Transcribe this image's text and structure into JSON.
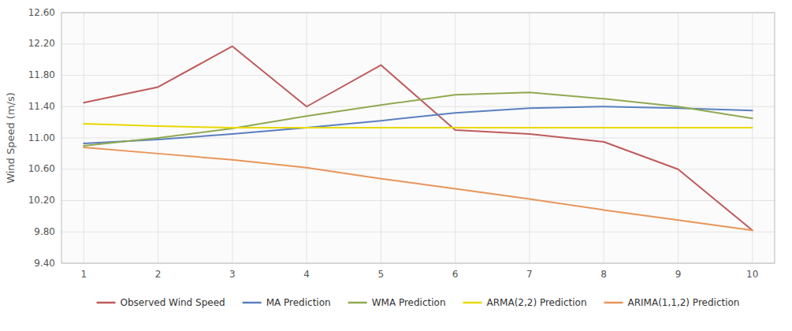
{
  "chart_data": {
    "type": "line",
    "ylabel": "Wind Speed (m/s)",
    "x": [
      1,
      2,
      3,
      4,
      5,
      6,
      7,
      8,
      9,
      10
    ],
    "series": [
      {
        "name": "Observed Wind Speed",
        "color": "#be5b5b",
        "values": [
          11.45,
          11.65,
          12.17,
          11.4,
          11.93,
          11.1,
          11.05,
          10.95,
          10.6,
          9.82
        ]
      },
      {
        "name": "MA Prediction",
        "color": "#5b7fbf",
        "values": [
          10.93,
          10.98,
          11.05,
          11.13,
          11.22,
          11.32,
          11.38,
          11.4,
          11.38,
          11.35
        ]
      },
      {
        "name": "WMA Prediction",
        "color": "#8faa50",
        "values": [
          10.9,
          11.0,
          11.12,
          11.28,
          11.42,
          11.55,
          11.58,
          11.5,
          11.4,
          11.25
        ]
      },
      {
        "name": "ARMA(2,2) Prediction",
        "color": "#e8d800",
        "values": [
          11.18,
          11.15,
          11.13,
          11.13,
          11.13,
          11.13,
          11.13,
          11.13,
          11.13,
          11.13
        ]
      },
      {
        "name": "ARIMA(1,1,2) Prediction",
        "color": "#e8955a",
        "values": [
          10.88,
          10.8,
          10.72,
          10.62,
          10.48,
          10.35,
          10.22,
          10.08,
          9.95,
          9.82
        ]
      }
    ],
    "xlim": [
      0.7,
      10.3
    ],
    "xticks": [
      1,
      2,
      3,
      4,
      5,
      6,
      7,
      8,
      9,
      10
    ],
    "ylim": [
      9.4,
      12.6
    ],
    "yticks": [
      {
        "value": 9.4,
        "label": "9.40"
      },
      {
        "value": 9.8,
        "label": "9.80"
      },
      {
        "value": 10.2,
        "label": "10.20"
      },
      {
        "value": 10.6,
        "label": "10.60"
      },
      {
        "value": 11.0,
        "label": "11.00"
      },
      {
        "value": 11.4,
        "label": "11.40"
      },
      {
        "value": 11.8,
        "label": "11.80"
      },
      {
        "value": 12.2,
        "label": "12.20"
      },
      {
        "value": 12.6,
        "label": "12.60"
      }
    ],
    "grid": true,
    "legend": "bottom"
  }
}
